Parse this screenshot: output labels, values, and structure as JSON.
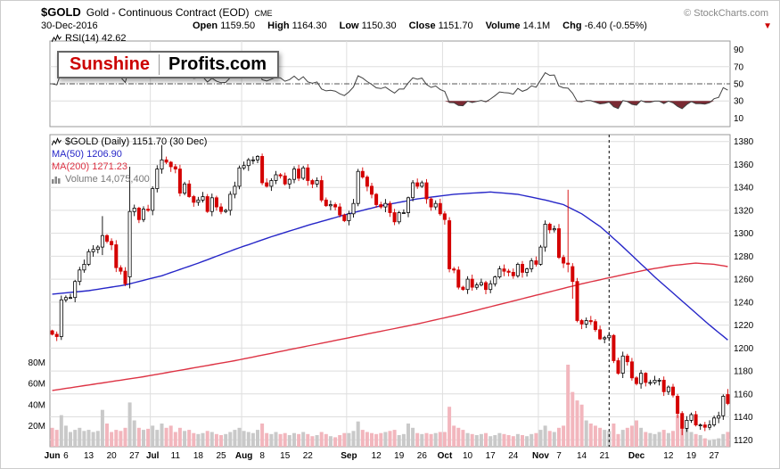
{
  "header": {
    "symbol": "$GOLD",
    "name": "Gold - Continuous Contract (EOD)",
    "exchange": "CME",
    "copyright": "© StockCharts.com",
    "date": "30-Dec-2016",
    "quote": [
      {
        "label": "Open",
        "value": "1159.50"
      },
      {
        "label": "High",
        "value": "1164.30"
      },
      {
        "label": "Low",
        "value": "1150.30"
      },
      {
        "label": "Close",
        "value": "1151.70"
      },
      {
        "label": "Volume",
        "value": "14.1M"
      },
      {
        "label": "Chg",
        "value": "-6.40 (-0.55%)"
      }
    ]
  },
  "icons": {
    "direction_down": "▼"
  },
  "logo": {
    "part1": "Sunshine",
    "part2": "Profits.com"
  },
  "rsi_panel": {
    "label": "RSI(14) 42.62"
  },
  "price_panel": {
    "title": "$GOLD (Daily) 1151.70 (30 Dec)",
    "ma50_label": "MA(50) 1206.90",
    "ma200_label": "MA(200) 1271.23",
    "volume_label": "Volume 14,075,400"
  },
  "colors": {
    "candle_up": "#000000",
    "candle_up_fill": "#ffffff",
    "candle_down": "#d40000",
    "ma50": "#2626c8",
    "ma200": "#dd3344",
    "volume_up": "#c9c9c9",
    "volume_down": "#f2b6bd",
    "rsi_line": "#404040",
    "rsi_fill": "#7a2a33",
    "grid": "#dedede",
    "panel_border": "#999999",
    "dashed_mid": "#555555",
    "vline": "#000000",
    "accent_red": "#cc0000",
    "title_black": "#000000",
    "volume_legend_gray": "#787878"
  },
  "chart_data": {
    "type": "candlestick",
    "title": "$GOLD (Daily) - Gold Continuous Contract (EOD) with RSI(14), MA(50), MA(200), Volume",
    "x_axis": "Jun 2016 - Dec 2016, daily bars",
    "summary": {
      "rsi14": 42.62,
      "ma50": 1206.9,
      "ma200": 1271.23,
      "close": 1151.7,
      "volume": 14075400
    },
    "price_ticks": [
      1120,
      1140,
      1160,
      1180,
      1200,
      1220,
      1240,
      1260,
      1280,
      1300,
      1320,
      1340,
      1360,
      1380
    ],
    "price_range": [
      1114,
      1386
    ],
    "rsi_ticks": [
      10,
      30,
      50,
      70,
      90
    ],
    "rsi_thresholds": {
      "overbought": 70,
      "mid": 50,
      "oversold": 30
    },
    "volume_ticks": [
      20,
      40,
      60,
      80
    ],
    "first_open": 1215,
    "closes": [
      1212,
      1210,
      1242,
      1244,
      1244,
      1258,
      1268,
      1273,
      1284,
      1286,
      1288,
      1298,
      1293,
      1290,
      1270,
      1267,
      1256,
      1319,
      1322,
      1312,
      1321,
      1320,
      1339,
      1356,
      1364,
      1362,
      1358,
      1356,
      1335,
      1343,
      1332,
      1327,
      1329,
      1332,
      1319,
      1331,
      1323,
      1319,
      1320,
      1334,
      1341,
      1357,
      1359,
      1364,
      1364,
      1367,
      1344,
      1341,
      1346,
      1351,
      1350,
      1343,
      1347,
      1356,
      1348,
      1357,
      1346,
      1343,
      1346,
      1329,
      1324,
      1325,
      1323,
      1316,
      1311,
      1317,
      1326,
      1354,
      1349,
      1341,
      1334,
      1325,
      1323,
      1326,
      1318,
      1310,
      1318,
      1318,
      1331,
      1344,
      1341,
      1344,
      1330,
      1323,
      1326,
      1317,
      1312,
      1269,
      1268,
      1253,
      1251,
      1260,
      1253,
      1255,
      1257,
      1251,
      1256,
      1262,
      1269,
      1267,
      1266,
      1263,
      1273,
      1266,
      1269,
      1276,
      1273,
      1288,
      1308,
      1303,
      1304,
      1279,
      1274,
      1273,
      1258,
      1224,
      1221,
      1224,
      1223,
      1216,
      1208,
      1209,
      1211,
      1189,
      1178,
      1193,
      1188,
      1174,
      1169,
      1178,
      1170,
      1170,
      1172,
      1172,
      1162,
      1166,
      1159,
      1143,
      1130,
      1137,
      1142,
      1133,
      1133,
      1131,
      1133,
      1139,
      1141,
      1158,
      1151.7
    ],
    "ohlc_overrides": {
      "11": [
        1288,
        1315,
        1281,
        1298
      ],
      "17": [
        1262,
        1358,
        1252,
        1319
      ],
      "24": [
        1356,
        1377,
        1352,
        1364
      ],
      "87": [
        1311,
        1314,
        1266,
        1269
      ],
      "113": [
        1274,
        1338,
        1266,
        1273
      ],
      "114": [
        1271,
        1274,
        1243,
        1258
      ],
      "137": [
        1158,
        1160,
        1139,
        1143
      ],
      "138": [
        1143,
        1145,
        1124,
        1130
      ],
      "148": [
        1159.5,
        1164.3,
        1150.3,
        1151.7
      ]
    },
    "volumes_m": [
      18,
      16,
      30,
      20,
      14,
      16,
      18,
      15,
      16,
      14,
      15,
      35,
      22,
      14,
      16,
      15,
      18,
      42,
      25,
      18,
      16,
      17,
      20,
      16,
      22,
      18,
      20,
      14,
      18,
      15,
      16,
      13,
      12,
      13,
      15,
      14,
      12,
      11,
      12,
      14,
      16,
      18,
      15,
      14,
      13,
      16,
      22,
      13,
      12,
      14,
      12,
      13,
      11,
      13,
      12,
      14,
      12,
      10,
      11,
      14,
      12,
      10,
      9,
      11,
      13,
      13,
      15,
      24,
      16,
      14,
      13,
      12,
      13,
      14,
      15,
      16,
      11,
      12,
      22,
      18,
      13,
      12,
      13,
      12,
      13,
      14,
      14,
      38,
      20,
      18,
      16,
      13,
      12,
      11,
      12,
      13,
      10,
      11,
      13,
      12,
      11,
      10,
      12,
      11,
      10,
      12,
      13,
      16,
      20,
      15,
      14,
      18,
      20,
      78,
      52,
      44,
      40,
      25,
      22,
      20,
      18,
      16,
      15,
      22,
      12,
      16,
      18,
      20,
      25,
      18,
      14,
      13,
      12,
      14,
      16,
      13,
      15,
      30,
      28,
      18,
      14,
      12,
      11,
      8,
      6,
      7,
      8,
      12,
      14.1
    ],
    "ma50_points": [
      [
        0,
        1247
      ],
      [
        8,
        1250
      ],
      [
        16,
        1255
      ],
      [
        24,
        1263
      ],
      [
        32,
        1274
      ],
      [
        40,
        1286
      ],
      [
        48,
        1297
      ],
      [
        56,
        1307
      ],
      [
        64,
        1316
      ],
      [
        72,
        1324
      ],
      [
        80,
        1330
      ],
      [
        88,
        1334
      ],
      [
        96,
        1336
      ],
      [
        102,
        1334
      ],
      [
        108,
        1329
      ],
      [
        112,
        1325
      ],
      [
        116,
        1317
      ],
      [
        120,
        1306
      ],
      [
        124,
        1292
      ],
      [
        128,
        1277
      ],
      [
        132,
        1262
      ],
      [
        136,
        1248
      ],
      [
        140,
        1234
      ],
      [
        144,
        1220
      ],
      [
        148,
        1207
      ]
    ],
    "ma200_points": [
      [
        0,
        1163
      ],
      [
        10,
        1169
      ],
      [
        20,
        1175
      ],
      [
        30,
        1182
      ],
      [
        40,
        1189
      ],
      [
        50,
        1197
      ],
      [
        60,
        1205
      ],
      [
        70,
        1213
      ],
      [
        80,
        1221
      ],
      [
        90,
        1230
      ],
      [
        100,
        1240
      ],
      [
        108,
        1248
      ],
      [
        116,
        1256
      ],
      [
        124,
        1263
      ],
      [
        130,
        1268
      ],
      [
        136,
        1272
      ],
      [
        141,
        1274
      ],
      [
        145,
        1273
      ],
      [
        148,
        1271
      ]
    ],
    "month_starts": [
      22,
      42,
      65,
      86,
      107,
      128
    ],
    "x_labels": [
      [
        0,
        "Jun",
        1
      ],
      [
        3,
        "6",
        0
      ],
      [
        8,
        "13",
        0
      ],
      [
        13,
        "20",
        0
      ],
      [
        18,
        "27",
        0
      ],
      [
        22,
        "Jul",
        1
      ],
      [
        27,
        "11",
        0
      ],
      [
        32,
        "18",
        0
      ],
      [
        37,
        "25",
        0
      ],
      [
        42,
        "Aug",
        1
      ],
      [
        46,
        "8",
        0
      ],
      [
        51,
        "15",
        0
      ],
      [
        56,
        "22",
        0
      ],
      [
        65,
        "Sep",
        1
      ],
      [
        71,
        "12",
        0
      ],
      [
        76,
        "19",
        0
      ],
      [
        81,
        "26",
        0
      ],
      [
        86,
        "Oct",
        1
      ],
      [
        91,
        "10",
        0
      ],
      [
        96,
        "17",
        0
      ],
      [
        101,
        "24",
        0
      ],
      [
        107,
        "Nov",
        1
      ],
      [
        111,
        "7",
        0
      ],
      [
        116,
        "14",
        0
      ],
      [
        121,
        "21",
        0
      ],
      [
        128,
        "Dec",
        1
      ],
      [
        135,
        "12",
        0
      ],
      [
        140,
        "19",
        0
      ],
      [
        145,
        "27",
        0
      ]
    ],
    "vline_index": 122
  }
}
